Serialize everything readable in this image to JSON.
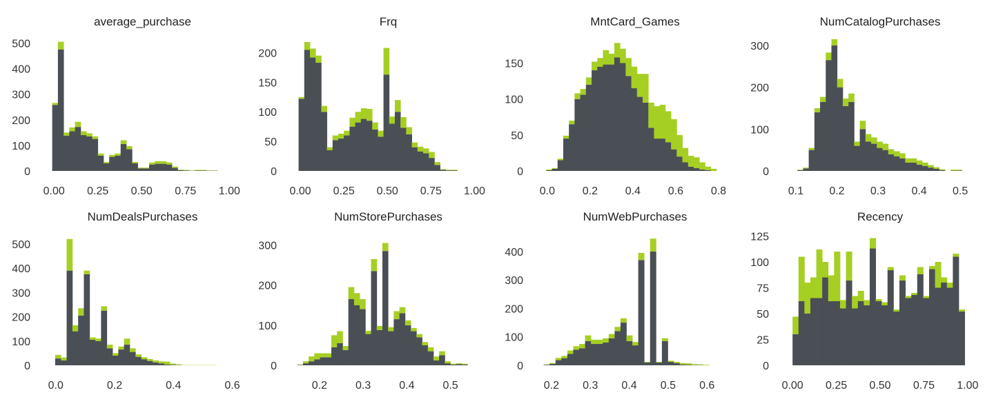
{
  "colors": {
    "base": "#4a4f55",
    "top": "#a6cf24"
  },
  "chart_data": [
    {
      "type": "bar",
      "stacked": true,
      "title": "average_purchase",
      "xlim": [
        -0.04,
        1.05
      ],
      "ylim": [
        0,
        520
      ],
      "xticks": [
        0,
        0.25,
        0.5,
        0.75,
        1
      ],
      "xtick_labels": [
        "0.00",
        "0.25",
        "0.50",
        "0.75",
        "1.00"
      ],
      "yticks": [
        0,
        100,
        200,
        300,
        400,
        500
      ],
      "ytick_labels": [
        "0",
        "100",
        "200",
        "300",
        "400",
        "500"
      ],
      "bin_start": -0.01,
      "bin_width": 0.0325,
      "series": [
        {
          "values": [
            258,
            475,
            138,
            155,
            172,
            140,
            135,
            125,
            60,
            30,
            55,
            60,
            105,
            85,
            30,
            10,
            10,
            25,
            28,
            28,
            25,
            12,
            3,
            2,
            1,
            2,
            2,
            1,
            1
          ]
        },
        {
          "values": [
            8,
            30,
            12,
            15,
            20,
            15,
            12,
            10,
            8,
            5,
            8,
            8,
            15,
            12,
            5,
            3,
            3,
            8,
            10,
            10,
            8,
            5,
            2,
            2,
            1,
            2,
            2,
            1,
            1
          ]
        }
      ]
    },
    {
      "type": "bar",
      "stacked": true,
      "title": "Frq",
      "xlim": [
        -0.04,
        1.05
      ],
      "ylim": [
        0,
        225
      ],
      "xticks": [
        0,
        0.25,
        0.5,
        0.75,
        1
      ],
      "xtick_labels": [
        "0.00",
        "0.25",
        "0.50",
        "0.75",
        "1.00"
      ],
      "yticks": [
        0,
        50,
        100,
        150,
        200
      ],
      "ytick_labels": [
        "0",
        "50",
        "100",
        "150",
        "200"
      ],
      "bin_start": -0.01,
      "bin_width": 0.0325,
      "series": [
        {
          "values": [
            122,
            205,
            192,
            183,
            100,
            35,
            52,
            55,
            60,
            75,
            82,
            88,
            85,
            70,
            58,
            163,
            80,
            100,
            73,
            62,
            40,
            33,
            30,
            22,
            10,
            2,
            1,
            1,
            0
          ]
        },
        {
          "values": [
            3,
            13,
            15,
            12,
            10,
            5,
            8,
            8,
            8,
            15,
            18,
            18,
            20,
            12,
            10,
            45,
            12,
            20,
            18,
            12,
            8,
            8,
            8,
            10,
            5,
            1,
            1,
            1,
            0
          ]
        }
      ]
    },
    {
      "type": "bar",
      "stacked": true,
      "title": "MntCard_Games",
      "xlim": [
        -0.035,
        0.855
      ],
      "ylim": [
        0,
        185
      ],
      "xticks": [
        0,
        0.2,
        0.4,
        0.6,
        0.8
      ],
      "xtick_labels": [
        "0.0",
        "0.2",
        "0.4",
        "0.6",
        "0.8"
      ],
      "yticks": [
        0,
        50,
        100,
        150
      ],
      "ytick_labels": [
        "0",
        "50",
        "100",
        "150"
      ],
      "bin_start": -0.005,
      "bin_width": 0.0265,
      "series": [
        {
          "values": [
            1,
            3,
            15,
            45,
            65,
            100,
            106,
            120,
            140,
            145,
            148,
            148,
            158,
            150,
            132,
            115,
            103,
            95,
            60,
            45,
            45,
            40,
            30,
            20,
            12,
            6,
            4,
            2,
            1,
            0
          ]
        },
        {
          "values": [
            1,
            1,
            2,
            4,
            5,
            8,
            8,
            10,
            12,
            12,
            20,
            15,
            20,
            20,
            25,
            30,
            32,
            40,
            35,
            45,
            47,
            43,
            42,
            30,
            20,
            15,
            15,
            10,
            5,
            3
          ]
        }
      ]
    },
    {
      "type": "bar",
      "stacked": true,
      "title": "NumCatalogPurchases",
      "xlim": [
        0.075,
        0.535
      ],
      "ylim": [
        0,
        318
      ],
      "xticks": [
        0.1,
        0.2,
        0.3,
        0.4,
        0.5
      ],
      "xtick_labels": [
        "0.1",
        "0.2",
        "0.3",
        "0.4",
        "0.5"
      ],
      "yticks": [
        0,
        100,
        200,
        300
      ],
      "ytick_labels": [
        "0",
        "100",
        "200",
        "300"
      ],
      "bin_start": 0.09,
      "bin_width": 0.0138,
      "series": [
        {
          "values": [
            0,
            2,
            6,
            50,
            140,
            165,
            265,
            300,
            200,
            155,
            165,
            60,
            100,
            70,
            65,
            55,
            50,
            40,
            35,
            30,
            20,
            20,
            15,
            12,
            8,
            5,
            2,
            0,
            1,
            1
          ]
        },
        {
          "values": [
            0,
            1,
            2,
            5,
            10,
            12,
            18,
            15,
            20,
            18,
            20,
            10,
            20,
            18,
            15,
            15,
            15,
            12,
            12,
            12,
            10,
            10,
            10,
            8,
            6,
            4,
            2,
            0,
            2,
            2
          ]
        }
      ]
    },
    {
      "type": "bar",
      "stacked": true,
      "title": "NumDealsPurchases",
      "xlim": [
        -0.03,
        0.62
      ],
      "ylim": [
        0,
        545
      ],
      "xticks": [
        0,
        0.2,
        0.4,
        0.6
      ],
      "xtick_labels": [
        "0.0",
        "0.2",
        "0.4",
        "0.6"
      ],
      "yticks": [
        0,
        100,
        200,
        300,
        400,
        500
      ],
      "ytick_labels": [
        "0",
        "100",
        "200",
        "300",
        "400",
        "500"
      ],
      "bin_start": -0.002,
      "bin_width": 0.0195,
      "series": [
        {
          "values": [
            28,
            20,
            390,
            140,
            205,
            375,
            105,
            100,
            225,
            70,
            40,
            65,
            85,
            55,
            35,
            25,
            18,
            12,
            8,
            3,
            2,
            1,
            0,
            0,
            0,
            0,
            0,
            0,
            0,
            0
          ]
        },
        {
          "values": [
            15,
            12,
            130,
            25,
            30,
            15,
            10,
            10,
            18,
            15,
            10,
            12,
            25,
            15,
            10,
            8,
            8,
            8,
            8,
            12,
            5,
            3,
            1,
            1,
            1,
            1,
            1,
            1,
            0,
            0
          ]
        }
      ]
    },
    {
      "type": "bar",
      "stacked": true,
      "title": "NumStorePurchases",
      "xlim": [
        0.14,
        0.575
      ],
      "ylim": [
        0,
        330
      ],
      "xticks": [
        0.2,
        0.3,
        0.4,
        0.5
      ],
      "xtick_labels": [
        "0.2",
        "0.3",
        "0.4",
        "0.5"
      ],
      "bin_start": 0.149,
      "bin_width": 0.013,
      "yticks": [
        0,
        100,
        200,
        300
      ],
      "ytick_labels": [
        "0",
        "100",
        "200",
        "300"
      ],
      "series": [
        {
          "values": [
            1,
            5,
            10,
            15,
            20,
            20,
            45,
            55,
            38,
            165,
            150,
            140,
            78,
            235,
            88,
            285,
            85,
            115,
            130,
            100,
            85,
            70,
            50,
            35,
            12,
            25,
            5,
            2,
            3,
            2
          ]
        },
        {
          "values": [
            1,
            5,
            12,
            15,
            10,
            10,
            30,
            30,
            10,
            30,
            30,
            25,
            8,
            30,
            10,
            20,
            10,
            20,
            15,
            12,
            8,
            8,
            8,
            10,
            10,
            10,
            5,
            2,
            2,
            2
          ]
        }
      ]
    },
    {
      "type": "bar",
      "stacked": true,
      "title": "NumWebPurchases",
      "xlim": [
        0.17,
        0.66
      ],
      "ylim": [
        0,
        465
      ],
      "xticks": [
        0.2,
        0.3,
        0.4,
        0.5,
        0.6
      ],
      "xtick_labels": [
        "0.2",
        "0.3",
        "0.4",
        "0.5",
        "0.6"
      ],
      "yticks": [
        0,
        100,
        200,
        300,
        400
      ],
      "ytick_labels": [
        "0",
        "100",
        "200",
        "300",
        "400"
      ],
      "bin_start": 0.18,
      "bin_width": 0.0152,
      "series": [
        {
          "values": [
            2,
            5,
            18,
            25,
            40,
            55,
            60,
            85,
            75,
            75,
            80,
            95,
            120,
            150,
            85,
            70,
            370,
            10,
            400,
            10,
            85,
            12,
            8,
            3,
            2,
            1,
            1,
            0,
            0,
            0
          ]
        },
        {
          "values": [
            1,
            3,
            8,
            8,
            12,
            12,
            15,
            20,
            15,
            15,
            15,
            15,
            15,
            15,
            20,
            12,
            25,
            2,
            45,
            2,
            10,
            4,
            4,
            5,
            5,
            3,
            2,
            2,
            0,
            0
          ]
        }
      ]
    },
    {
      "type": "bar",
      "stacked": true,
      "title": "Recency",
      "xlim": [
        -0.04,
        1.04
      ],
      "ylim": [
        0,
        128
      ],
      "xticks": [
        0,
        0.25,
        0.5,
        0.75,
        1
      ],
      "xtick_labels": [
        "0.00",
        "0.25",
        "0.50",
        "0.75",
        "1.00"
      ],
      "yticks": [
        0,
        25,
        50,
        75,
        100,
        125
      ],
      "ytick_labels": [
        "0",
        "25",
        "50",
        "75",
        "100",
        "125"
      ],
      "bin_start": 0.0,
      "bin_width": 0.0339,
      "series": [
        {
          "values": [
            30,
            62,
            50,
            65,
            65,
            85,
            62,
            62,
            55,
            82,
            55,
            62,
            58,
            113,
            62,
            58,
            92,
            52,
            82,
            65,
            68,
            88,
            65,
            93,
            75,
            80,
            75,
            105,
            52,
            0
          ]
        },
        {
          "values": [
            17,
            43,
            30,
            20,
            47,
            15,
            25,
            48,
            8,
            28,
            12,
            10,
            5,
            10,
            2,
            3,
            3,
            2,
            5,
            2,
            2,
            7,
            2,
            3,
            25,
            5,
            5,
            3,
            2,
            0
          ]
        }
      ]
    }
  ]
}
